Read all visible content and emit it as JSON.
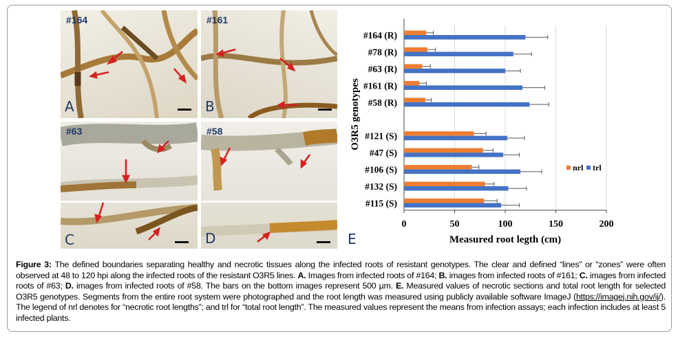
{
  "panels": {
    "A": {
      "letter": "A",
      "label": "#164"
    },
    "B": {
      "letter": "B",
      "label": "#161"
    },
    "C": {
      "letter": "C",
      "label": "#63"
    },
    "D": {
      "letter": "D",
      "label": "#58"
    },
    "E": {
      "letter": "E"
    }
  },
  "chart_data": {
    "type": "bar",
    "orientation": "horizontal",
    "categories": [
      "#164 (R)",
      "#78 (R)",
      "#63 (R)",
      "#161 (R)",
      "#58 (R)",
      "",
      "#121 (S)",
      "#47 (S)",
      "#106 (S)",
      "#132 (S)",
      "#115 (S)"
    ],
    "series": [
      {
        "name": "nrl",
        "color": "#ed7d31",
        "values": [
          22,
          23,
          18,
          15,
          21,
          null,
          69,
          78,
          67,
          80,
          79
        ],
        "error_upper": [
          29,
          31,
          26,
          22,
          27,
          null,
          81,
          88,
          74,
          89,
          92
        ]
      },
      {
        "name": "trl",
        "color": "#4472c4",
        "values": [
          120,
          108,
          100,
          117,
          124,
          null,
          102,
          98,
          115,
          103,
          96
        ],
        "error_upper": [
          142,
          126,
          115,
          139,
          143,
          null,
          119,
          114,
          136,
          121,
          114
        ]
      }
    ],
    "xlabel": "Measured  root legth (cm)",
    "ylabel": "O3R5 genotypes",
    "xlim": [
      0,
      200
    ],
    "xticks": [
      "0",
      "50",
      "100",
      "150",
      "200"
    ],
    "grid": true,
    "legend_position": "right"
  },
  "caption": {
    "figure_label": "Figure 3:",
    "text1": " The defined boundaries separating healthy and necrotic tissues along the infected roots of resistant genotypes. The clear and defined “lines” or “zones” were often observed at 48 to 120 hpi along the infected roots of the resistant O3R5 lines. ",
    "a": "A.",
    "a_text": " Images from infected roots of #164; ",
    "b": "B.",
    "b_text": " images from infected roots of #161; ",
    "c": "C.",
    "c_text": " images from infected roots of #63; ",
    "d": "D.",
    "d_text": " images from infected roots of #58. The bars on the bottom images represent 500 µm. ",
    "e": "E.",
    "e_text": " Measured values of necrotic sections and total root length for selected O3R5 genotypes. Segments from the entire root system were photographed and the root length was measured using publicly available software ImageJ (",
    "link": "https://imagej.nih.gov/ij/",
    "text_end": "). The legend of nrl denotes for “necrotic root lengths”; and trl for “total root length”. The measured values represent the means from infection assays; each infection includes at least 5 infected plants."
  }
}
